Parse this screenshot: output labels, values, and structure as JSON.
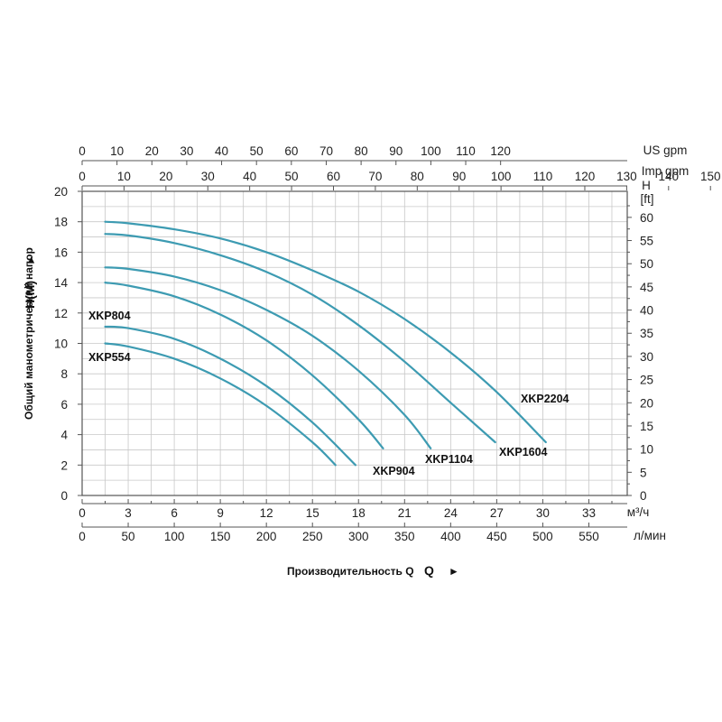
{
  "chart_data": {
    "type": "line",
    "colors": {
      "curve": "#3d9bb2",
      "grid": "#c8c8c8",
      "frame": "#555555"
    },
    "grid": true,
    "axes": {
      "x_main": {
        "unit": "м³/ч",
        "range": [
          0,
          35.5
        ],
        "ticks": [
          "0",
          "3",
          "6",
          "9",
          "12",
          "15",
          "18",
          "21",
          "24",
          "27",
          "30",
          "33"
        ]
      },
      "x_lmin": {
        "unit": "л/мин",
        "ticks": [
          "0",
          "50",
          "100",
          "150",
          "200",
          "250",
          "300",
          "350",
          "400",
          "450",
          "500",
          "550"
        ]
      },
      "x_us_gpm": {
        "unit": "US gpm",
        "ticks": [
          "0",
          "10",
          "20",
          "30",
          "40",
          "50",
          "60",
          "70",
          "80",
          "90",
          "100",
          "110",
          "120"
        ]
      },
      "x_imp_gpm": {
        "unit": "Imp gpm",
        "ticks": [
          "0",
          "10",
          "20",
          "30",
          "40",
          "50",
          "60",
          "70",
          "80",
          "90",
          "100",
          "110",
          "120",
          "130",
          "140",
          "150"
        ]
      },
      "y_main": {
        "unit": "H(M)",
        "range": [
          0,
          20
        ],
        "ticks": [
          "0",
          "2",
          "4",
          "6",
          "8",
          "10",
          "12",
          "14",
          "16",
          "18",
          "20"
        ]
      },
      "y_ft": {
        "unit_top": "H",
        "unit_bottom": "[ft]",
        "ticks": [
          "0",
          "5",
          "10",
          "15",
          "20",
          "25",
          "30",
          "35",
          "40",
          "45",
          "50",
          "55",
          "60"
        ]
      }
    },
    "xlabel": "Производительность Q",
    "ylabel": "Общий манометрический напор",
    "arrow_right": "►",
    "arrow_up": "►",
    "series": [
      {
        "name": "XKP554",
        "x": [
          1.5,
          3,
          6,
          9,
          12,
          15,
          16.5
        ],
        "y": [
          10.0,
          9.8,
          9.0,
          7.7,
          5.9,
          3.5,
          2.0
        ]
      },
      {
        "name": "XKP804",
        "x": [
          1.5,
          3,
          6,
          9,
          12,
          15,
          17.8
        ],
        "y": [
          11.1,
          11.0,
          10.3,
          9.0,
          7.2,
          4.8,
          2.0
        ]
      },
      {
        "name": "XKP904",
        "x": [
          1.5,
          3,
          6,
          9,
          12,
          15,
          18,
          19.6
        ],
        "y": [
          14.0,
          13.8,
          13.1,
          11.9,
          10.2,
          7.9,
          5.0,
          3.1
        ]
      },
      {
        "name": "XKP1104",
        "x": [
          1.5,
          3,
          6,
          9,
          12,
          15,
          18,
          21,
          22.7
        ],
        "y": [
          15.0,
          14.9,
          14.4,
          13.5,
          12.2,
          10.5,
          8.2,
          5.3,
          3.1
        ]
      },
      {
        "name": "XKP1604",
        "x": [
          1.5,
          3,
          6,
          9,
          12,
          15,
          18,
          21,
          24,
          26.9
        ],
        "y": [
          17.2,
          17.1,
          16.6,
          15.8,
          14.7,
          13.2,
          11.2,
          8.8,
          6.1,
          3.5
        ]
      },
      {
        "name": "XKP2204",
        "x": [
          1.5,
          3,
          6,
          9,
          12,
          15,
          18,
          21,
          24,
          27,
          30.2
        ],
        "y": [
          18.0,
          17.9,
          17.5,
          16.9,
          16.0,
          14.8,
          13.4,
          11.6,
          9.4,
          6.8,
          3.5
        ]
      }
    ]
  }
}
